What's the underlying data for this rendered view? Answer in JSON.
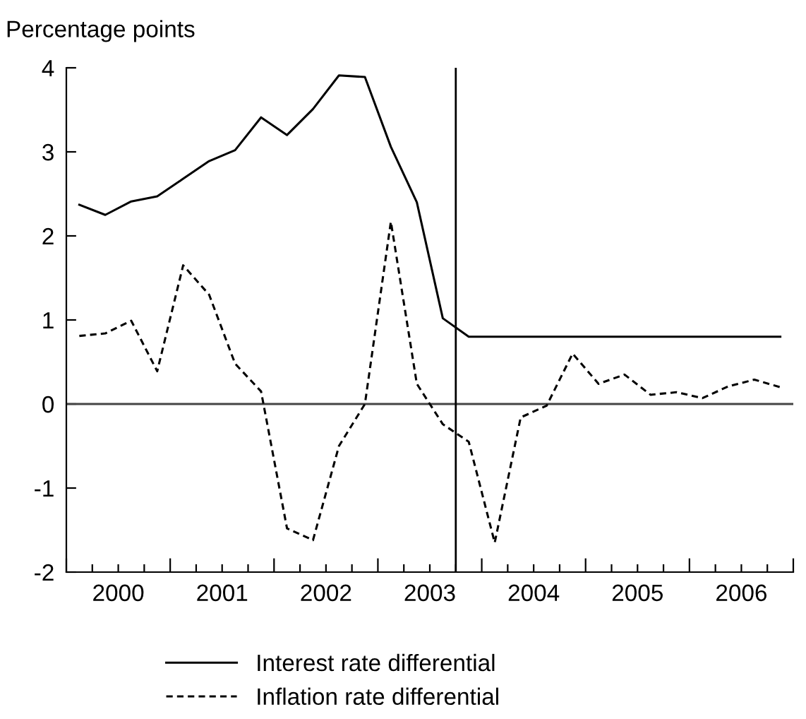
{
  "chart_data": {
    "type": "line",
    "ylabel": "Percentage points",
    "x": [
      2000.125,
      2000.375,
      2000.625,
      2000.875,
      2001.125,
      2001.375,
      2001.625,
      2001.875,
      2002.125,
      2002.375,
      2002.625,
      2002.875,
      2003.125,
      2003.375,
      2003.625,
      2003.875,
      2004.125,
      2004.375,
      2004.625,
      2004.875,
      2005.125,
      2005.375,
      2005.625,
      2005.875,
      2006.125,
      2006.375,
      2006.625,
      2006.875
    ],
    "series": [
      {
        "name": "Interest rate differential",
        "color": "#000000",
        "line_style": "solid",
        "values": [
          2.37,
          2.25,
          2.41,
          2.47,
          2.68,
          2.89,
          3.02,
          3.41,
          3.2,
          3.51,
          3.91,
          3.89,
          3.06,
          2.4,
          1.02,
          0.8,
          0.8,
          0.8,
          0.8,
          0.8,
          0.8,
          0.8,
          0.8,
          0.8,
          0.8,
          0.8,
          0.8,
          0.8
        ]
      },
      {
        "name": "Inflation rate differential",
        "color": "#000000",
        "line_style": "dashed",
        "values": [
          0.81,
          0.84,
          0.99,
          0.39,
          1.65,
          1.3,
          0.48,
          0.15,
          -1.48,
          -1.62,
          -0.5,
          0.0,
          2.17,
          0.24,
          -0.24,
          -0.45,
          -1.65,
          -0.16,
          -0.02,
          0.6,
          0.24,
          0.35,
          0.11,
          0.14,
          0.07,
          0.21,
          0.29,
          0.2
        ]
      }
    ],
    "xlim": [
      2000,
      2007
    ],
    "xticks": [
      {
        "value": 2000,
        "label": null
      },
      {
        "value": 2000.25,
        "label": null
      },
      {
        "value": 2000.5,
        "label": "2000"
      },
      {
        "value": 2000.75,
        "label": null
      },
      {
        "value": 2001,
        "label": null
      },
      {
        "value": 2001.25,
        "label": null
      },
      {
        "value": 2001.5,
        "label": "2001"
      },
      {
        "value": 2001.75,
        "label": null
      },
      {
        "value": 2002,
        "label": null
      },
      {
        "value": 2002.25,
        "label": null
      },
      {
        "value": 2002.5,
        "label": "2002"
      },
      {
        "value": 2002.75,
        "label": null
      },
      {
        "value": 2003,
        "label": null
      },
      {
        "value": 2003.25,
        "label": null
      },
      {
        "value": 2003.5,
        "label": "2003"
      },
      {
        "value": 2003.75,
        "label": null
      },
      {
        "value": 2004,
        "label": null
      },
      {
        "value": 2004.25,
        "label": null
      },
      {
        "value": 2004.5,
        "label": "2004"
      },
      {
        "value": 2004.75,
        "label": null
      },
      {
        "value": 2005,
        "label": null
      },
      {
        "value": 2005.25,
        "label": null
      },
      {
        "value": 2005.5,
        "label": "2005"
      },
      {
        "value": 2005.75,
        "label": null
      },
      {
        "value": 2006,
        "label": null
      },
      {
        "value": 2006.25,
        "label": null
      },
      {
        "value": 2006.5,
        "label": "2006"
      },
      {
        "value": 2006.75,
        "label": null
      },
      {
        "value": 2007,
        "label": null
      }
    ],
    "ylim": [
      -2,
      4
    ],
    "yticks": [
      -2,
      -1,
      0,
      1,
      2,
      3,
      4
    ],
    "ref_lines": [
      {
        "axis": "y",
        "value": 0,
        "color": "#444444"
      },
      {
        "axis": "x",
        "value": 2003.75,
        "color": "#000000"
      }
    ],
    "grid": false,
    "legend": "bottom"
  }
}
